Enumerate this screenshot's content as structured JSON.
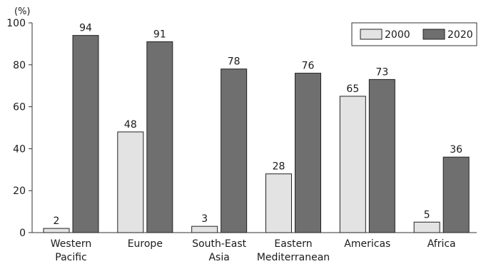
{
  "chart_data": {
    "type": "bar",
    "y_unit_label": "(%)",
    "ylim": [
      0,
      100
    ],
    "yticks": [
      0,
      20,
      40,
      60,
      80,
      100
    ],
    "grid": false,
    "legend_position": "top-right",
    "categories": [
      [
        "Western",
        "Pacific"
      ],
      [
        "Europe"
      ],
      [
        "South-East",
        "Asia"
      ],
      [
        "Eastern",
        "Mediterranean"
      ],
      [
        "Americas"
      ],
      [
        "Africa"
      ]
    ],
    "series": [
      {
        "name": "2000",
        "color": "#e3e3e3",
        "values": [
          2,
          48,
          3,
          28,
          65,
          5
        ]
      },
      {
        "name": "2020",
        "color": "#6f6f6f",
        "values": [
          94,
          91,
          78,
          76,
          73,
          36
        ]
      }
    ]
  }
}
